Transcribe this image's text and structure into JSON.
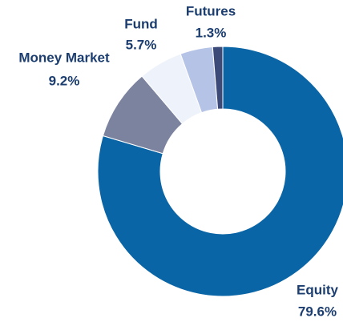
{
  "chart_data": {
    "type": "pie",
    "donut": true,
    "categories": [
      "Equity",
      "Money Market",
      "Fund",
      null,
      "Futures"
    ],
    "values": [
      79.6,
      9.2,
      5.7,
      4.2,
      1.3
    ],
    "value_labels": [
      "79.6%",
      "9.2%",
      "5.7%",
      null,
      "1.3%"
    ],
    "colors": [
      "#0a65a6",
      "#7c839f",
      "#eef3fb",
      "#b5c3e6",
      "#3b4a78"
    ]
  }
}
